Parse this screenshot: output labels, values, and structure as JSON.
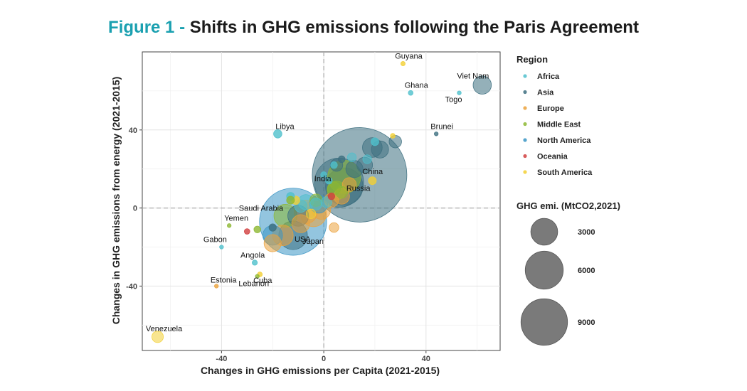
{
  "figure": {
    "label": "Figure 1 -",
    "title": "Shifts in GHG emissions following the Paris Agreement"
  },
  "colors": {
    "Africa": "#4fc0cc",
    "Asia": "#3d6f80",
    "Europe": "#eba23c",
    "Middle East": "#8db832",
    "North America": "#3a95c4",
    "Oceania": "#d13f3f",
    "South America": "#f3d034",
    "size_legend": "#7a7a7a",
    "title_accent": "#1aa0b0"
  },
  "chart_data": {
    "type": "scatter",
    "title": "Shifts in GHG emissions following the Paris Agreement",
    "xlabel": "Changes in GHG emissions per Capita (2021-2015)",
    "ylabel": "Changes in GHG emissions from energy (2021-2015)",
    "xlim": [
      -71,
      69
    ],
    "ylim": [
      -73,
      80
    ],
    "xticks": [
      -40,
      0,
      40
    ],
    "yticks": [
      -40,
      0,
      40
    ],
    "xtick_labels": [
      "-40",
      "0",
      "40"
    ],
    "ytick_labels": [
      "-40",
      "0",
      "40"
    ],
    "grid": true,
    "reference_lines": {
      "x": 0,
      "y": 0
    },
    "legend_region_title": "Region",
    "regions": [
      "Africa",
      "Asia",
      "Europe",
      "Middle East",
      "North America",
      "Oceania",
      "South America"
    ],
    "size_legend_title": "GHG emi. (MtCO2,2021)",
    "size_legend": [
      {
        "value": 3000,
        "label": "3000"
      },
      {
        "value": 6000,
        "label": "6000"
      },
      {
        "value": 9000,
        "label": "9000"
      }
    ],
    "points": [
      {
        "x": 14,
        "y": 17,
        "size": 11500,
        "region": "Asia",
        "label": "China"
      },
      {
        "x": -12,
        "y": -7,
        "size": 5800,
        "region": "North America",
        "label": "USA"
      },
      {
        "x": 6,
        "y": 13,
        "size": 3100,
        "region": "Asia",
        "label": "India"
      },
      {
        "x": 8,
        "y": 11,
        "size": 1800,
        "region": "Asia",
        "label": "Russia"
      },
      {
        "x": -12,
        "y": -14,
        "size": 1050,
        "region": "Asia",
        "label": "Japan"
      },
      {
        "x": -15,
        "y": -4,
        "size": 680,
        "region": "Middle East",
        "label": "Saudi Arabia"
      },
      {
        "x": 62,
        "y": 63,
        "size": 430,
        "region": "Asia",
        "label": "Viet Nam"
      },
      {
        "x": 31,
        "y": 74,
        "size": 25,
        "region": "South America",
        "label": "Guyana"
      },
      {
        "x": 34,
        "y": 59,
        "size": 30,
        "region": "Africa",
        "label": "Ghana"
      },
      {
        "x": 53,
        "y": 59,
        "size": 20,
        "region": "Africa",
        "label": "Togo"
      },
      {
        "x": 44,
        "y": 38,
        "size": 20,
        "region": "Asia",
        "label": "Brunei"
      },
      {
        "x": -18,
        "y": 38,
        "size": 90,
        "region": "Africa",
        "label": "Libya"
      },
      {
        "x": -37,
        "y": -9,
        "size": 20,
        "region": "Middle East",
        "label": "Yemen"
      },
      {
        "x": -40,
        "y": -20,
        "size": 20,
        "region": "Africa",
        "label": "Gabon"
      },
      {
        "x": -27,
        "y": -28,
        "size": 35,
        "region": "Africa",
        "label": "Angola"
      },
      {
        "x": -25,
        "y": -34,
        "size": 30,
        "region": "South America",
        "label": "Cuba"
      },
      {
        "x": -42,
        "y": -40,
        "size": 20,
        "region": "Europe",
        "label": "Estonia"
      },
      {
        "x": -26,
        "y": -35,
        "size": 20,
        "region": "Middle East",
        "label": "Lebanon"
      },
      {
        "x": -65,
        "y": -66,
        "size": 170,
        "region": "South America",
        "label": "Venezuela"
      },
      {
        "x": -4,
        "y": -3,
        "size": 850,
        "region": "Europe",
        "label": ""
      },
      {
        "x": -7,
        "y": -2,
        "size": 700,
        "region": "Europe",
        "label": ""
      },
      {
        "x": -1,
        "y": -1,
        "size": 450,
        "region": "Europe",
        "label": ""
      },
      {
        "x": -20,
        "y": -18,
        "size": 380,
        "region": "Europe",
        "label": ""
      },
      {
        "x": -16,
        "y": -14,
        "size": 550,
        "region": "Europe",
        "label": ""
      },
      {
        "x": -9,
        "y": -8,
        "size": 420,
        "region": "Europe",
        "label": ""
      },
      {
        "x": 7,
        "y": 6,
        "size": 320,
        "region": "Europe",
        "label": ""
      },
      {
        "x": 3,
        "y": 4,
        "size": 260,
        "region": "Europe",
        "label": ""
      },
      {
        "x": -20,
        "y": -14,
        "size": 500,
        "region": "North America",
        "label": ""
      },
      {
        "x": -2,
        "y": 2,
        "size": 420,
        "region": "North America",
        "label": ""
      },
      {
        "x": -7,
        "y": 3,
        "size": 300,
        "region": "Africa",
        "label": ""
      },
      {
        "x": -3,
        "y": 2,
        "size": 180,
        "region": "Africa",
        "label": ""
      },
      {
        "x": 1,
        "y": 3,
        "size": 150,
        "region": "Africa",
        "label": ""
      },
      {
        "x": 8,
        "y": 16,
        "size": 1400,
        "region": "Middle East",
        "label": ""
      },
      {
        "x": 5,
        "y": 9,
        "size": 450,
        "region": "Middle East",
        "label": ""
      },
      {
        "x": -3,
        "y": 4,
        "size": 200,
        "region": "Middle East",
        "label": ""
      },
      {
        "x": 19,
        "y": 31,
        "size": 500,
        "region": "Asia",
        "label": ""
      },
      {
        "x": 22,
        "y": 30,
        "size": 380,
        "region": "Asia",
        "label": ""
      },
      {
        "x": 28,
        "y": 34,
        "size": 200,
        "region": "Asia",
        "label": ""
      },
      {
        "x": 12,
        "y": 20,
        "size": 380,
        "region": "Asia",
        "label": ""
      },
      {
        "x": 16,
        "y": 22,
        "size": 320,
        "region": "Asia",
        "label": ""
      },
      {
        "x": -10,
        "y": -4,
        "size": 560,
        "region": "Asia",
        "label": ""
      },
      {
        "x": 11,
        "y": 26,
        "size": 100,
        "region": "Africa",
        "label": ""
      },
      {
        "x": 17,
        "y": 25,
        "size": 100,
        "region": "Africa",
        "label": ""
      },
      {
        "x": 20,
        "y": 34,
        "size": 80,
        "region": "Africa",
        "label": ""
      },
      {
        "x": 4,
        "y": 22,
        "size": 60,
        "region": "Africa",
        "label": ""
      },
      {
        "x": 2,
        "y": 14,
        "size": 60,
        "region": "Africa",
        "label": ""
      },
      {
        "x": 0,
        "y": 17,
        "size": 50,
        "region": "Africa",
        "label": ""
      },
      {
        "x": -13,
        "y": 6,
        "size": 80,
        "region": "Africa",
        "label": ""
      },
      {
        "x": -9,
        "y": 1,
        "size": 200,
        "region": "Africa",
        "label": ""
      },
      {
        "x": 4,
        "y": 10,
        "size": 220,
        "region": "Middle East",
        "label": ""
      },
      {
        "x": 7,
        "y": 8,
        "size": 180,
        "region": "Middle East",
        "label": ""
      },
      {
        "x": -26,
        "y": -11,
        "size": 60,
        "region": "Middle East",
        "label": ""
      },
      {
        "x": -13,
        "y": 4,
        "size": 80,
        "region": "Middle East",
        "label": ""
      },
      {
        "x": 5,
        "y": 22,
        "size": 200,
        "region": "Asia",
        "label": ""
      },
      {
        "x": -20,
        "y": -10,
        "size": 70,
        "region": "Asia",
        "label": ""
      },
      {
        "x": 7,
        "y": 25,
        "size": 60,
        "region": "Asia",
        "label": ""
      },
      {
        "x": 27,
        "y": 37,
        "size": 30,
        "region": "South America",
        "label": ""
      },
      {
        "x": -5,
        "y": -3,
        "size": 120,
        "region": "South America",
        "label": ""
      },
      {
        "x": 19,
        "y": 14,
        "size": 80,
        "region": "South America",
        "label": ""
      },
      {
        "x": -11,
        "y": 4,
        "size": 90,
        "region": "South America",
        "label": ""
      },
      {
        "x": 3,
        "y": 6,
        "size": 60,
        "region": "Oceania",
        "label": ""
      },
      {
        "x": -30,
        "y": -12,
        "size": 40,
        "region": "Oceania",
        "label": ""
      },
      {
        "x": 4,
        "y": -10,
        "size": 120,
        "region": "Europe",
        "label": ""
      },
      {
        "x": 10,
        "y": 12,
        "size": 250,
        "region": "Europe",
        "label": ""
      }
    ]
  }
}
